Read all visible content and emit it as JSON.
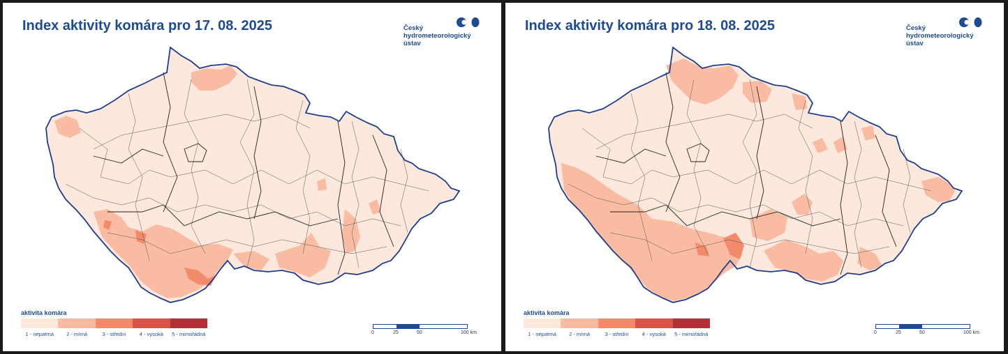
{
  "colors": {
    "accent": "#1e4a94",
    "border": "#1d3d8f",
    "district_line": "#222222",
    "levels": [
      "#fde8dd",
      "#f9bba1",
      "#f38a6c",
      "#e05048",
      "#b12f35"
    ]
  },
  "panels": [
    {
      "title": "Index aktivity komára pro 17. 08. 2025",
      "map_description": "Czech Republic map, mostly level 1 (nepatrná); level 2 (mírná) in south Bohemia and south Moravia; small level 3 (střední) spots near south-west border",
      "logo": {
        "text": "Český\nhydrometeorologický\nústav",
        "mark": "chmi-logo-mark"
      },
      "legend": {
        "title": "aktivita komára",
        "items": [
          "1 - nepatrná",
          "2 - mírná",
          "3 - střední",
          "4 - vysoká",
          "5 - mimořádná"
        ]
      },
      "scalebar": {
        "ticks": [
          "0",
          "25",
          "50",
          "100 km"
        ]
      }
    },
    {
      "title": "Index aktivity komára pro 18. 08. 2025",
      "map_description": "Czech Republic map with wider level 2 (mírná) in south-west Bohemia, north Bohemia and south Moravia; level 3 (střední) spot in south Bohemia",
      "logo": {
        "text": "Český\nhydrometeorologický\nústav",
        "mark": "chmi-logo-mark"
      },
      "legend": {
        "title": "aktivita komára",
        "items": [
          "1 - nepatrná",
          "2 - mírná",
          "3 - střední",
          "4 - vysoká",
          "5 - mimořádná"
        ]
      },
      "scalebar": {
        "ticks": [
          "0",
          "25",
          "50",
          "100 km"
        ]
      }
    }
  ]
}
